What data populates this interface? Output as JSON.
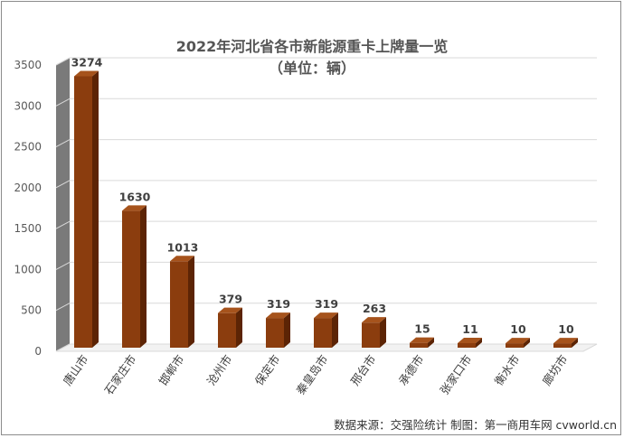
{
  "chart_data": {
    "type": "bar",
    "title": "2022年河北省各市新能源重卡上牌量一览",
    "subtitle": "（单位：辆）",
    "categories": [
      "唐山市",
      "石家庄市",
      "邯郸市",
      "沧州市",
      "保定市",
      "秦皇岛市",
      "邢台市",
      "承德市",
      "张家口市",
      "衡水市",
      "廊坊市"
    ],
    "values": [
      3274,
      1630,
      1013,
      379,
      319,
      319,
      263,
      15,
      11,
      10,
      10
    ],
    "yticks": [
      "0",
      "500",
      "1000",
      "1500",
      "2000",
      "2500",
      "3000",
      "3500"
    ],
    "ylim": [
      0,
      3500
    ],
    "grid": true,
    "legend": "none",
    "bar_color": "#8B3D0E",
    "bar_side_color": "#5C2405",
    "bar_top_color": "#A6531C",
    "wall_color": "#7a7a7a"
  },
  "footer": "数据来源：交强险统计  制图：第一商用车网 cvworld.cn"
}
